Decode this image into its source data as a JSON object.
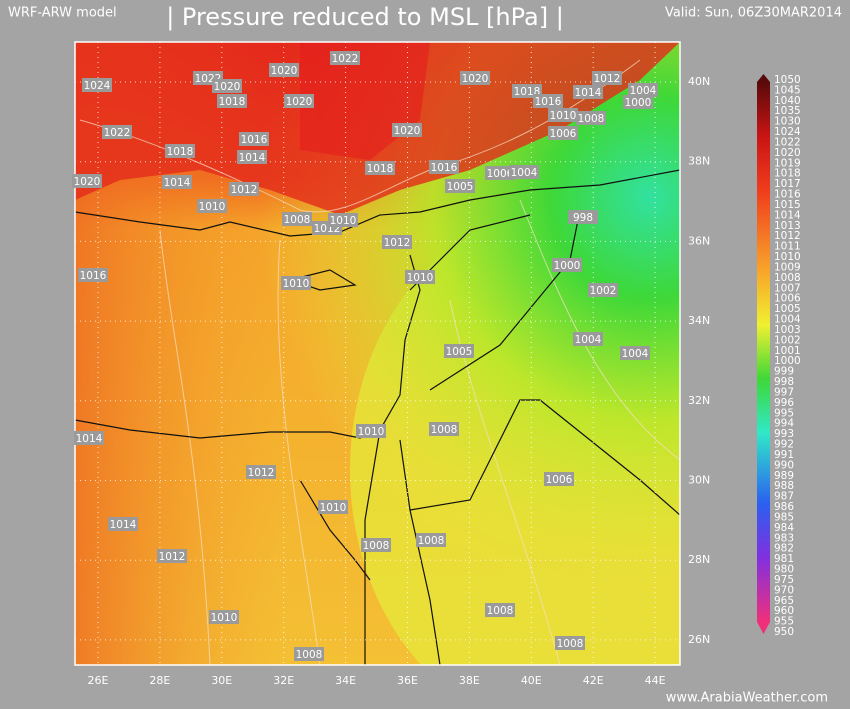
{
  "header": {
    "model": "WRF-ARW model",
    "title": "| Pressure reduced to MSL [hPa] |",
    "valid": "Valid: Sun, 06Z30MAR2014"
  },
  "axes": {
    "longitudes": [
      "26E",
      "28E",
      "30E",
      "32E",
      "34E",
      "36E",
      "38E",
      "40E",
      "42E",
      "44E"
    ],
    "latitudes": [
      "40N",
      "38N",
      "36N",
      "34N",
      "32N",
      "30N",
      "28N",
      "26N"
    ]
  },
  "colorbar": {
    "labels": [
      "1050",
      "1045",
      "1040",
      "1035",
      "1030",
      "1024",
      "1022",
      "1020",
      "1019",
      "1018",
      "1017",
      "1016",
      "1015",
      "1014",
      "1013",
      "1012",
      "1011",
      "1010",
      "1009",
      "1008",
      "1007",
      "1006",
      "1005",
      "1004",
      "1003",
      "1002",
      "1001",
      "1000",
      "999",
      "998",
      "997",
      "996",
      "995",
      "994",
      "993",
      "992",
      "991",
      "990",
      "989",
      "988",
      "987",
      "986",
      "985",
      "984",
      "983",
      "982",
      "981",
      "980",
      "975",
      "970",
      "965",
      "960",
      "955",
      "950"
    ]
  },
  "contour_labels": [
    "1024",
    "1022",
    "1020",
    "1022",
    "1020",
    "1018",
    "1020",
    "1020",
    "1018",
    "1016",
    "1012",
    "1014",
    "1004",
    "1000",
    "1010",
    "1008",
    "1006",
    "1022",
    "1018",
    "1016",
    "1014",
    "1020",
    "1018",
    "1016",
    "1005",
    "1006",
    "1004",
    "1020",
    "1014",
    "1012",
    "1010",
    "1008",
    "1012",
    "1010",
    "1012",
    "998",
    "1000",
    "1002",
    "1016",
    "1010",
    "1010",
    "1004",
    "1004",
    "1005",
    "1014",
    "1010",
    "1008",
    "1012",
    "1006",
    "1010",
    "1014",
    "1008",
    "1008",
    "1012",
    "1010",
    "1008",
    "1008",
    "1008"
  ],
  "footer": {
    "site": "www.ArabiaWeather.com"
  }
}
